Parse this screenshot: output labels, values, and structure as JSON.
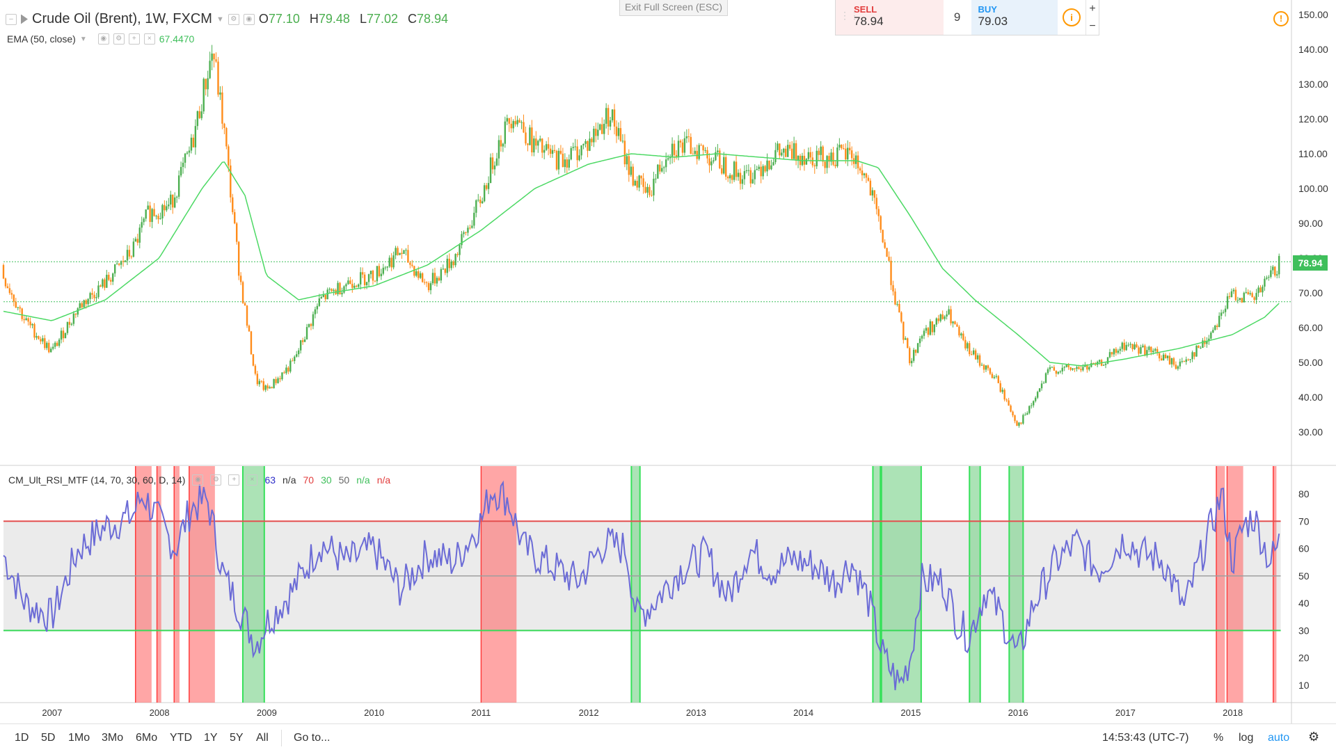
{
  "main_legend": {
    "symbol": "Crude Oil (Brent), 1W, FXCM",
    "open_key": "O",
    "open": "77.10",
    "high_key": "H",
    "high": "79.48",
    "low_key": "L",
    "low": "77.02",
    "close_key": "C",
    "close": "78.94"
  },
  "ema_legend": {
    "label": "EMA (50, close)",
    "value": "67.4470"
  },
  "exit_fullscreen": "Exit Full Screen (ESC)",
  "trade": {
    "sell_label": "SELL",
    "sell_price": "78.94",
    "quantity": "9",
    "buy_label": "BUY",
    "buy_price": "79.03",
    "plus": "+",
    "minus": "−"
  },
  "last_price_tag": "78.94",
  "price_axis": {
    "labels": [
      "150.00",
      "140.00",
      "130.00",
      "120.00",
      "110.00",
      "100.00",
      "90.00",
      "80.00",
      "70.00",
      "60.00",
      "50.00",
      "40.00",
      "30.00"
    ]
  },
  "indicator_legend": {
    "label": "CM_Ult_RSI_MTF (14, 70, 30, 60, D, 14)",
    "v1": "63",
    "v2": "n/a",
    "v3": "70",
    "v4": "30",
    "v5": "50",
    "v6": "n/a",
    "v7": "n/a"
  },
  "rsi_axis": {
    "labels": [
      "80",
      "70",
      "60",
      "50",
      "40",
      "30",
      "20",
      "10"
    ]
  },
  "time_axis": {
    "labels": [
      "2007",
      "2008",
      "2009",
      "2010",
      "2011",
      "2012",
      "2013",
      "2014",
      "2015",
      "2016",
      "2017",
      "2018"
    ]
  },
  "bottom_toolbar": {
    "timeframes": [
      "1D",
      "5D",
      "1Mo",
      "3Mo",
      "6Mo",
      "YTD",
      "1Y",
      "5Y",
      "All"
    ],
    "goto": "Go to...",
    "clock": "14:53:43 (UTC-7)",
    "percent": "%",
    "log": "log",
    "auto": "auto"
  },
  "colors": {
    "ema": "#4cd964",
    "candle_up": "#4caf50",
    "candle_down": "#ff8c1a",
    "rsi_line": "#6b6bd6",
    "overbought": "#ff6b6b",
    "oversold": "#4cd964",
    "band": "#ebebeb",
    "accent": "#2196f3"
  },
  "chart_data": {
    "type": "line",
    "title": "Crude Oil (Brent), 1W, FXCM",
    "price_ylim": [
      25,
      152
    ],
    "last_price": 78.94,
    "ema_last": 67.447,
    "price_series": {
      "name": "Crude Oil (Brent)",
      "x": [
        2006.5,
        2006.75,
        2007.0,
        2007.25,
        2007.5,
        2007.75,
        2007.9,
        2008.1,
        2008.3,
        2008.5,
        2008.6,
        2008.75,
        2008.9,
        2009.0,
        2009.25,
        2009.5,
        2009.75,
        2010.0,
        2010.25,
        2010.5,
        2010.75,
        2011.0,
        2011.15,
        2011.3,
        2011.5,
        2011.75,
        2012.0,
        2012.2,
        2012.4,
        2012.55,
        2012.75,
        2013.0,
        2013.2,
        2013.45,
        2013.75,
        2014.0,
        2014.25,
        2014.45,
        2014.6,
        2014.75,
        2014.9,
        2015.0,
        2015.1,
        2015.35,
        2015.5,
        2015.65,
        2015.8,
        2016.0,
        2016.1,
        2016.3,
        2016.5,
        2016.75,
        2017.0,
        2017.25,
        2017.5,
        2017.75,
        2018.0,
        2018.2,
        2018.45
      ],
      "values": [
        78,
        62,
        53,
        66,
        73,
        82,
        93,
        95,
        112,
        140,
        118,
        75,
        45,
        42,
        50,
        68,
        73,
        75,
        82,
        72,
        80,
        97,
        112,
        122,
        112,
        108,
        113,
        122,
        104,
        98,
        112,
        112,
        108,
        103,
        110,
        110,
        109,
        110,
        102,
        85,
        62,
        50,
        58,
        64,
        55,
        50,
        45,
        32,
        36,
        48,
        48,
        49,
        55,
        53,
        49,
        56,
        70,
        68,
        78.94
      ]
    },
    "ema_series": {
      "name": "EMA (50, close)",
      "x": [
        2006.5,
        2007.0,
        2007.5,
        2008.0,
        2008.4,
        2008.6,
        2008.8,
        2009.0,
        2009.3,
        2009.6,
        2010.0,
        2010.5,
        2011.0,
        2011.5,
        2012.0,
        2012.4,
        2012.8,
        2013.2,
        2013.6,
        2014.0,
        2014.5,
        2014.7,
        2015.0,
        2015.3,
        2015.6,
        2016.0,
        2016.3,
        2016.6,
        2017.0,
        2017.5,
        2018.0,
        2018.3,
        2018.45
      ],
      "values": [
        65,
        62,
        68,
        80,
        100,
        108,
        98,
        75,
        68,
        70,
        72,
        78,
        88,
        100,
        107,
        110,
        109,
        110,
        109,
        108,
        108,
        106,
        92,
        77,
        68,
        58,
        50,
        49,
        51,
        54,
        58,
        63,
        67.45
      ]
    },
    "rsi_ylim": [
      5,
      88
    ],
    "rsi_levels": {
      "overbought": 70,
      "oversold": 30,
      "mid": 50
    },
    "rsi_series": {
      "name": "CM_Ult_RSI_MTF",
      "x": [
        2006.5,
        2006.75,
        2007.0,
        2007.25,
        2007.5,
        2007.75,
        2007.85,
        2008.0,
        2008.15,
        2008.3,
        2008.45,
        2008.6,
        2008.75,
        2008.9,
        2009.0,
        2009.25,
        2009.5,
        2009.75,
        2010.0,
        2010.25,
        2010.5,
        2010.75,
        2011.0,
        2011.1,
        2011.25,
        2011.4,
        2011.6,
        2011.9,
        2012.15,
        2012.35,
        2012.45,
        2012.6,
        2012.85,
        2013.1,
        2013.3,
        2013.5,
        2013.7,
        2013.9,
        2014.1,
        2014.3,
        2014.45,
        2014.6,
        2014.75,
        2014.9,
        2015.0,
        2015.1,
        2015.3,
        2015.45,
        2015.55,
        2015.7,
        2015.85,
        2016.0,
        2016.15,
        2016.35,
        2016.55,
        2016.75,
        2017.0,
        2017.15,
        2017.35,
        2017.55,
        2017.75,
        2017.9,
        2018.0,
        2018.1,
        2018.2,
        2018.35,
        2018.45
      ],
      "values": [
        62,
        40,
        35,
        60,
        68,
        72,
        80,
        70,
        60,
        75,
        78,
        50,
        38,
        25,
        33,
        45,
        62,
        55,
        60,
        45,
        58,
        55,
        70,
        82,
        78,
        60,
        55,
        48,
        62,
        60,
        35,
        40,
        52,
        58,
        42,
        60,
        52,
        56,
        54,
        48,
        55,
        42,
        20,
        10,
        20,
        48,
        48,
        32,
        28,
        45,
        35,
        20,
        40,
        55,
        62,
        52,
        64,
        58,
        56,
        38,
        62,
        80,
        55,
        68,
        72,
        55,
        63
      ]
    },
    "overbought_zones": [
      [
        2007.78,
        2007.93
      ],
      [
        2007.98,
        2008.02
      ],
      [
        2008.14,
        2008.19
      ],
      [
        2008.28,
        2008.52
      ],
      [
        2011.0,
        2011.33
      ],
      [
        2017.85,
        2017.93
      ],
      [
        2017.95,
        2018.1
      ],
      [
        2018.38,
        2018.41
      ]
    ],
    "oversold_zones": [
      [
        2008.78,
        2008.98
      ],
      [
        2012.4,
        2012.48
      ],
      [
        2014.65,
        2014.72
      ],
      [
        2014.73,
        2015.1
      ],
      [
        2015.55,
        2015.65
      ],
      [
        2015.92,
        2016.05
      ]
    ]
  }
}
